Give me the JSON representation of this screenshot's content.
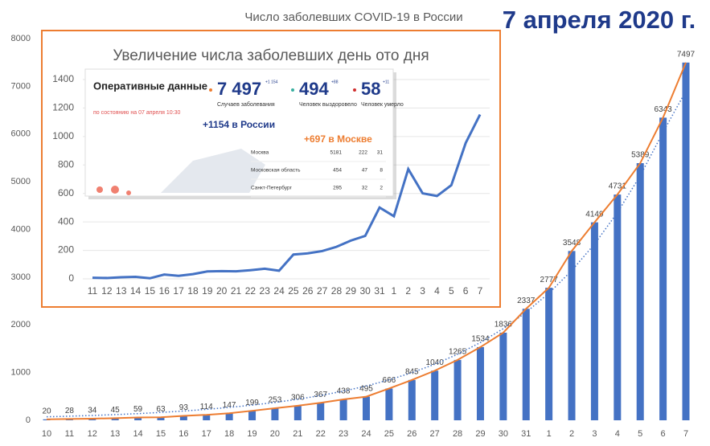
{
  "chart_data": [
    {
      "type": "bar",
      "title": "Число заболевших COVID-19 в России",
      "date_label": "7 апреля 2020 г.",
      "categories": [
        "10",
        "11",
        "12",
        "13",
        "14",
        "15",
        "16",
        "17",
        "18",
        "19",
        "20",
        "21",
        "22",
        "23",
        "24",
        "25",
        "26",
        "27",
        "28",
        "29",
        "30",
        "31",
        "1",
        "2",
        "3",
        "4",
        "5",
        "6",
        "7"
      ],
      "values": [
        20,
        28,
        34,
        45,
        59,
        63,
        93,
        114,
        147,
        199,
        253,
        306,
        367,
        438,
        495,
        666,
        845,
        1040,
        1265,
        1534,
        1836,
        2337,
        2777,
        3548,
        4149,
        4731,
        5389,
        6343,
        7497
      ],
      "color": "#4472c4",
      "line_color": "#ed7d31",
      "trend": {
        "color": "#4472c4",
        "values": [
          73,
          86,
          101,
          119,
          140,
          165,
          194,
          229,
          270,
          318,
          374,
          441,
          519,
          611,
          719,
          847,
          998,
          1175,
          1384,
          1630,
          1920,
          2262,
          2664,
          3137,
          3695,
          4352,
          5126,
          6038,
          6900
        ]
      },
      "ylim": [
        0,
        8000
      ],
      "yticks": [
        0,
        1000,
        2000,
        3000,
        4000,
        5000,
        6000,
        7000,
        8000
      ],
      "grid": false
    },
    {
      "type": "line",
      "title": "Увеличение числа заболевших день ото дня",
      "categories": [
        "11",
        "12",
        "13",
        "14",
        "15",
        "16",
        "17",
        "18",
        "19",
        "20",
        "21",
        "22",
        "23",
        "24",
        "25",
        "26",
        "27",
        "28",
        "29",
        "30",
        "31",
        "1",
        "2",
        "3",
        "4",
        "5",
        "6",
        "7"
      ],
      "values": [
        8,
        6,
        11,
        14,
        4,
        30,
        21,
        33,
        52,
        54,
        53,
        61,
        71,
        57,
        171,
        179,
        195,
        225,
        269,
        302,
        501,
        440,
        771,
        601,
        582,
        658,
        954,
        1154
      ],
      "color": "#4472c4",
      "ylim": [
        0,
        1400
      ],
      "yticks": [
        0,
        200,
        400,
        600,
        800,
        1000,
        1200,
        1400
      ],
      "grid": true
    }
  ],
  "panel": {
    "title": "Оперативные данные",
    "subtitle": "по состоянию на 07 апреля 10:30",
    "stats": [
      {
        "value": "7 497",
        "delta": "+1 154",
        "label": "Случаев заболевания"
      },
      {
        "value": "494",
        "delta": "+88",
        "label": "Человек выздоровело"
      },
      {
        "value": "58",
        "delta": "+11",
        "label": "Человек умерло"
      }
    ],
    "russia_note": "+1154 в России",
    "moscow_note": "+697 в Москве",
    "rows": [
      [
        "Москва",
        "5181",
        "222",
        "31"
      ],
      [
        "Московская область",
        "454",
        "47",
        "8"
      ],
      [
        "Санкт-Петербург",
        "295",
        "32",
        "2"
      ]
    ]
  }
}
